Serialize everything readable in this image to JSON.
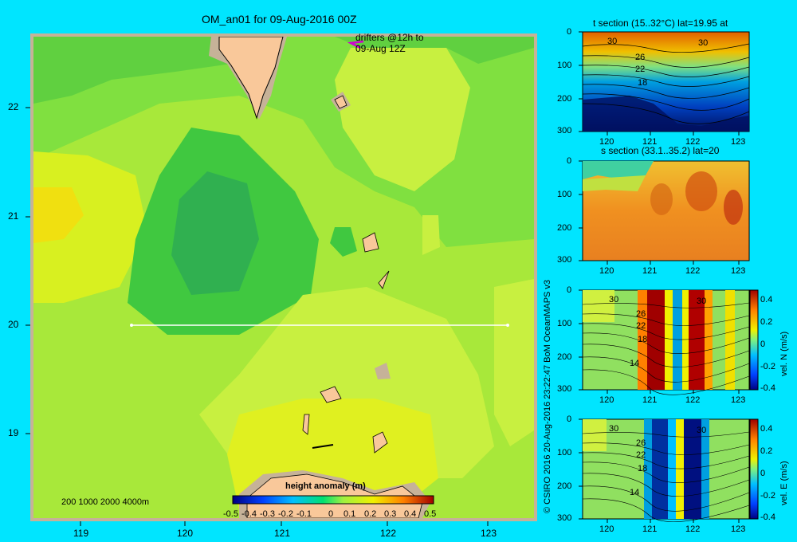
{
  "colors": {
    "background": "#00e5ff",
    "land": "#f9c89a",
    "shelf": "#c6b298",
    "section_line": "#ffffff",
    "driftmark": "#d000d0"
  },
  "map": {
    "title": "OM_an01 for 09-Aug-2016 00Z",
    "drifters_line1": "drifters @12h to",
    "drifters_line2": "09-Aug 12Z",
    "depth_legend": "200 1000 2000 4000m",
    "lon_ticks": [
      "119",
      "120",
      "121",
      "122",
      "123"
    ],
    "lat_ticks": [
      "22",
      "21",
      "20",
      "19"
    ],
    "colorbar_title": "height anomaly (m)",
    "colorbar_ticks": [
      "-0.5",
      "-0.4",
      "-0.3",
      "-0.2",
      "-0.1",
      "0",
      "0.1",
      "0.2",
      "0.3",
      "0.4",
      "0.5"
    ]
  },
  "sections": {
    "t_title": "t section (15..32°C) lat=19.95 at",
    "s_title": "s section (33.1..35.2) lat=20",
    "depth_ticks": [
      "0",
      "100",
      "200",
      "300"
    ],
    "lon_ticks": [
      "120",
      "121",
      "122",
      "123"
    ],
    "contours_t": [
      "30",
      "30",
      "26",
      "22",
      "18"
    ],
    "contours_v": [
      "30",
      "30",
      "26",
      "22",
      "18",
      "14"
    ],
    "vn_label": "vel. N (m/s)",
    "ve_label": "vel. E (m/s)",
    "vel_ticks": [
      "0.4",
      "0.2",
      "0",
      "-0.2",
      "-0.4"
    ]
  },
  "credit": "© CSIRO 2016  20-Aug-2016 23:22:47 BoM OceanMAPS v3",
  "chart_data": [
    {
      "type": "heatmap",
      "title": "OM_an01 for 09-Aug-2016 00Z",
      "variable": "height anomaly (m)",
      "xlabel": "",
      "ylabel": "",
      "x_ticks": [
        119,
        120,
        121,
        122,
        123
      ],
      "y_ticks": [
        22,
        21,
        20,
        19
      ],
      "xlim": [
        118.5,
        123.5
      ],
      "ylim": [
        18.3,
        22.7
      ],
      "clim": [
        -0.5,
        0.5
      ],
      "section_line": {
        "lat": 20,
        "lon": [
          119.5,
          123.2
        ]
      }
    },
    {
      "type": "heatmap",
      "title": "t section (15..32°C) lat=19.95 at",
      "x_ticks": [
        120,
        121,
        122,
        123
      ],
      "y_ticks": [
        0,
        100,
        200,
        300
      ],
      "clim": [
        15,
        32
      ],
      "contour_labels": [
        30,
        30,
        26,
        22,
        18
      ]
    },
    {
      "type": "heatmap",
      "title": "s section (33.1..35.2) lat=20",
      "x_ticks": [
        120,
        121,
        122,
        123
      ],
      "y_ticks": [
        0,
        100,
        200,
        300
      ],
      "clim": [
        33.1,
        35.2
      ]
    },
    {
      "type": "heatmap",
      "title": "",
      "variable": "vel. N (m/s)",
      "x_ticks": [
        120,
        121,
        122,
        123
      ],
      "y_ticks": [
        0,
        100,
        200,
        300
      ],
      "clim": [
        -0.4,
        0.4
      ]
    },
    {
      "type": "heatmap",
      "title": "",
      "variable": "vel. E (m/s)",
      "x_ticks": [
        120,
        121,
        122,
        123
      ],
      "y_ticks": [
        0,
        100,
        200,
        300
      ],
      "clim": [
        -0.4,
        0.4
      ]
    }
  ]
}
